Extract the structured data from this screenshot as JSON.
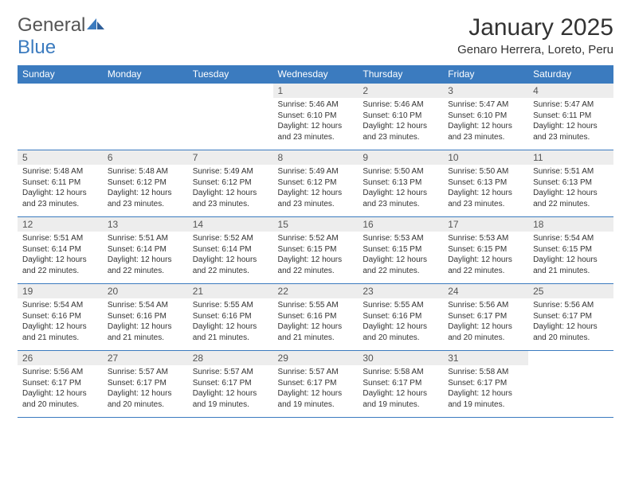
{
  "logo": {
    "text1": "General",
    "text2": "Blue"
  },
  "title": "January 2025",
  "location": "Genaro Herrera, Loreto, Peru",
  "colors": {
    "header_bg": "#3b7bbf",
    "header_text": "#ffffff",
    "daynum_bg": "#ededed",
    "border": "#3b7bbf",
    "text": "#333333"
  },
  "day_headers": [
    "Sunday",
    "Monday",
    "Tuesday",
    "Wednesday",
    "Thursday",
    "Friday",
    "Saturday"
  ],
  "weeks": [
    [
      {
        "empty": true
      },
      {
        "empty": true
      },
      {
        "empty": true
      },
      {
        "num": "1",
        "sunrise": "5:46 AM",
        "sunset": "6:10 PM",
        "daylight": "12 hours and 23 minutes."
      },
      {
        "num": "2",
        "sunrise": "5:46 AM",
        "sunset": "6:10 PM",
        "daylight": "12 hours and 23 minutes."
      },
      {
        "num": "3",
        "sunrise": "5:47 AM",
        "sunset": "6:10 PM",
        "daylight": "12 hours and 23 minutes."
      },
      {
        "num": "4",
        "sunrise": "5:47 AM",
        "sunset": "6:11 PM",
        "daylight": "12 hours and 23 minutes."
      }
    ],
    [
      {
        "num": "5",
        "sunrise": "5:48 AM",
        "sunset": "6:11 PM",
        "daylight": "12 hours and 23 minutes."
      },
      {
        "num": "6",
        "sunrise": "5:48 AM",
        "sunset": "6:12 PM",
        "daylight": "12 hours and 23 minutes."
      },
      {
        "num": "7",
        "sunrise": "5:49 AM",
        "sunset": "6:12 PM",
        "daylight": "12 hours and 23 minutes."
      },
      {
        "num": "8",
        "sunrise": "5:49 AM",
        "sunset": "6:12 PM",
        "daylight": "12 hours and 23 minutes."
      },
      {
        "num": "9",
        "sunrise": "5:50 AM",
        "sunset": "6:13 PM",
        "daylight": "12 hours and 23 minutes."
      },
      {
        "num": "10",
        "sunrise": "5:50 AM",
        "sunset": "6:13 PM",
        "daylight": "12 hours and 23 minutes."
      },
      {
        "num": "11",
        "sunrise": "5:51 AM",
        "sunset": "6:13 PM",
        "daylight": "12 hours and 22 minutes."
      }
    ],
    [
      {
        "num": "12",
        "sunrise": "5:51 AM",
        "sunset": "6:14 PM",
        "daylight": "12 hours and 22 minutes."
      },
      {
        "num": "13",
        "sunrise": "5:51 AM",
        "sunset": "6:14 PM",
        "daylight": "12 hours and 22 minutes."
      },
      {
        "num": "14",
        "sunrise": "5:52 AM",
        "sunset": "6:14 PM",
        "daylight": "12 hours and 22 minutes."
      },
      {
        "num": "15",
        "sunrise": "5:52 AM",
        "sunset": "6:15 PM",
        "daylight": "12 hours and 22 minutes."
      },
      {
        "num": "16",
        "sunrise": "5:53 AM",
        "sunset": "6:15 PM",
        "daylight": "12 hours and 22 minutes."
      },
      {
        "num": "17",
        "sunrise": "5:53 AM",
        "sunset": "6:15 PM",
        "daylight": "12 hours and 22 minutes."
      },
      {
        "num": "18",
        "sunrise": "5:54 AM",
        "sunset": "6:15 PM",
        "daylight": "12 hours and 21 minutes."
      }
    ],
    [
      {
        "num": "19",
        "sunrise": "5:54 AM",
        "sunset": "6:16 PM",
        "daylight": "12 hours and 21 minutes."
      },
      {
        "num": "20",
        "sunrise": "5:54 AM",
        "sunset": "6:16 PM",
        "daylight": "12 hours and 21 minutes."
      },
      {
        "num": "21",
        "sunrise": "5:55 AM",
        "sunset": "6:16 PM",
        "daylight": "12 hours and 21 minutes."
      },
      {
        "num": "22",
        "sunrise": "5:55 AM",
        "sunset": "6:16 PM",
        "daylight": "12 hours and 21 minutes."
      },
      {
        "num": "23",
        "sunrise": "5:55 AM",
        "sunset": "6:16 PM",
        "daylight": "12 hours and 20 minutes."
      },
      {
        "num": "24",
        "sunrise": "5:56 AM",
        "sunset": "6:17 PM",
        "daylight": "12 hours and 20 minutes."
      },
      {
        "num": "25",
        "sunrise": "5:56 AM",
        "sunset": "6:17 PM",
        "daylight": "12 hours and 20 minutes."
      }
    ],
    [
      {
        "num": "26",
        "sunrise": "5:56 AM",
        "sunset": "6:17 PM",
        "daylight": "12 hours and 20 minutes."
      },
      {
        "num": "27",
        "sunrise": "5:57 AM",
        "sunset": "6:17 PM",
        "daylight": "12 hours and 20 minutes."
      },
      {
        "num": "28",
        "sunrise": "5:57 AM",
        "sunset": "6:17 PM",
        "daylight": "12 hours and 19 minutes."
      },
      {
        "num": "29",
        "sunrise": "5:57 AM",
        "sunset": "6:17 PM",
        "daylight": "12 hours and 19 minutes."
      },
      {
        "num": "30",
        "sunrise": "5:58 AM",
        "sunset": "6:17 PM",
        "daylight": "12 hours and 19 minutes."
      },
      {
        "num": "31",
        "sunrise": "5:58 AM",
        "sunset": "6:17 PM",
        "daylight": "12 hours and 19 minutes."
      },
      {
        "empty": true
      }
    ]
  ],
  "labels": {
    "sunrise": "Sunrise:",
    "sunset": "Sunset:",
    "daylight": "Daylight:"
  }
}
